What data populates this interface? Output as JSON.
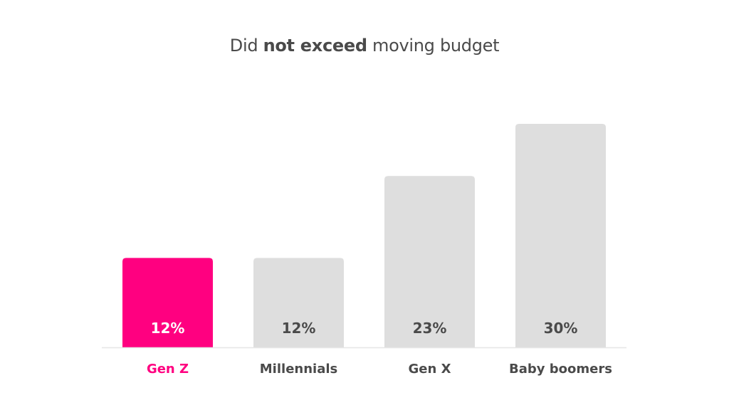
{
  "chart_data": {
    "type": "bar",
    "title": "Did not exceed moving budget",
    "title_parts": [
      {
        "text": "Did ",
        "bold": false
      },
      {
        "text": "not exceed",
        "bold": true
      },
      {
        "text": " moving budget",
        "bold": false
      }
    ],
    "categories": [
      "Gen Z",
      "Millennials",
      "Gen X",
      "Baby boomers"
    ],
    "values": [
      12,
      12,
      23,
      30
    ],
    "value_labels": [
      "12%",
      "12%",
      "23%",
      "30%"
    ],
    "unit": "%",
    "highlight_index": 0,
    "xlabel": "",
    "ylabel": "",
    "ylim": [
      0,
      31.7
    ],
    "grid": false,
    "legend": "none",
    "colors": {
      "highlight": "#ff0080",
      "bar": "#dedede",
      "value_text": "#4a4a4a",
      "highlight_value_text": "#ffffff",
      "category_text": "#4a4a4a",
      "axis": "#e6e6e6"
    }
  }
}
